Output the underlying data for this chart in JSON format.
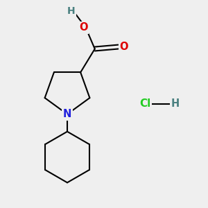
{
  "bg_color": "#efefef",
  "bond_color": "#000000",
  "N_color": "#2020dd",
  "O_color": "#dd0000",
  "H_color": "#4a8080",
  "Cl_color": "#22cc22",
  "line_width": 1.5,
  "font_size_atom": 10.5,
  "font_size_HCl": 11,
  "figsize": [
    3.0,
    3.0
  ],
  "dpi": 100,
  "xlim": [
    0,
    10
  ],
  "ylim": [
    0,
    10
  ]
}
